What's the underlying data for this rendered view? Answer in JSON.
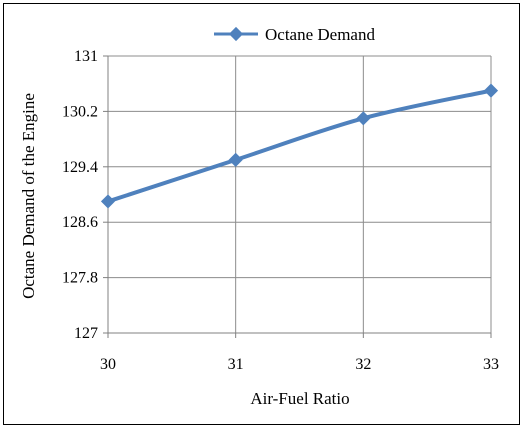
{
  "chart_data": {
    "type": "line",
    "x": [
      30,
      31,
      32,
      33
    ],
    "series": [
      {
        "name": "Octane Demand",
        "values": [
          128.9,
          129.5,
          130.1,
          130.5
        ]
      }
    ],
    "xlabel": "Air-Fuel Ratio",
    "ylabel": "Octane Demand of the Engine",
    "x_tick_labels": [
      "30",
      "31",
      "32",
      "33"
    ],
    "y_tick_labels": [
      "127",
      "127.8",
      "128.6",
      "129.4",
      "130.2",
      "131"
    ],
    "xlim": [
      30,
      33
    ],
    "ylim": [
      127,
      131
    ],
    "grid": true,
    "legend_position": "top",
    "line_color": "#4f81bd",
    "grid_color": "#8c8c8c",
    "axis_color": "#808080"
  }
}
